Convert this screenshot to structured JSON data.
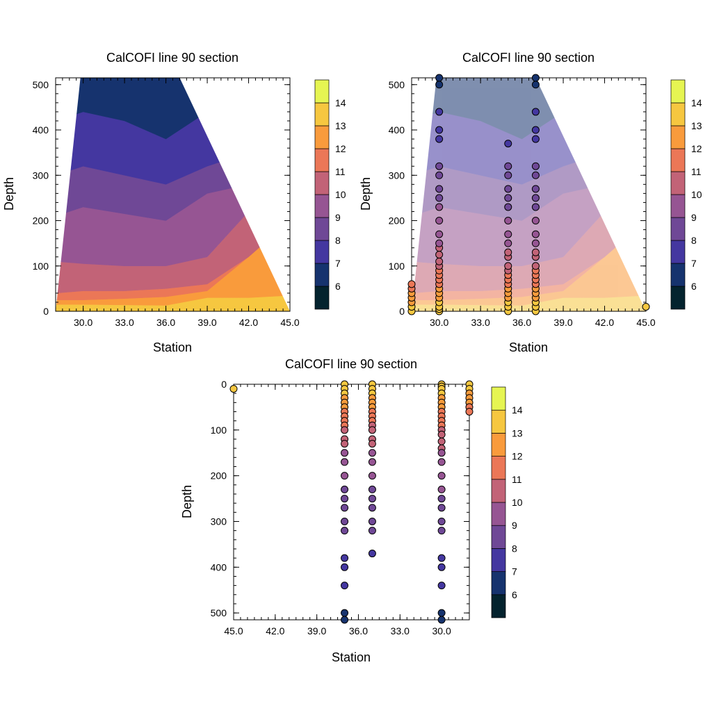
{
  "palette": [
    "#04232e",
    "#16336e",
    "#4437a0",
    "#6f4896",
    "#965593",
    "#c26377",
    "#eb7757",
    "#f99b3c",
    "#f6c740",
    "#e6f552"
  ],
  "colorbar_levels": [
    "6",
    "7",
    "8",
    "9",
    "10",
    "11",
    "12",
    "13",
    "14"
  ],
  "chart_data": [
    {
      "type": "filled-contour",
      "title": "CalCOFI line 90 section",
      "xlabel": "Station",
      "ylabel": "Depth",
      "xlim": [
        28.0,
        45.0
      ],
      "ylim": [
        0,
        515
      ],
      "y_reversed": false,
      "xticks": [
        "30.0",
        "33.0",
        "36.0",
        "39.0",
        "42.0",
        "45.0"
      ],
      "yticks": [
        "0",
        "100",
        "200",
        "300",
        "400",
        "500"
      ],
      "contour_levels": [
        6,
        7,
        8,
        9,
        10,
        11,
        12,
        13,
        14
      ],
      "domain_polygon": [
        [
          28.0,
          0
        ],
        [
          29.8,
          515
        ],
        [
          37.0,
          515
        ],
        [
          45.0,
          0
        ]
      ],
      "band_top_depth_profiles": {
        "stations": [
          28.0,
          30.0,
          33.0,
          36.0,
          39.0,
          42.0,
          45.0
        ],
        "above_13": [
          15,
          15,
          14,
          13,
          30,
          30,
          35
        ],
        "above_12": [
          25,
          25,
          28,
          32,
          45,
          120,
          200
        ],
        "above_11": [
          40,
          45,
          45,
          50,
          60,
          120,
          200
        ],
        "above_10": [
          110,
          105,
          100,
          100,
          120,
          220,
          300
        ],
        "above_9": [
          210,
          230,
          215,
          200,
          260,
          280,
          300
        ],
        "above_8": [
          300,
          320,
          300,
          280,
          320,
          350,
          380
        ],
        "above_7": [
          420,
          440,
          420,
          380,
          440,
          460,
          480
        ],
        "above_6": [
          520,
          520,
          520,
          520,
          520,
          520,
          520
        ]
      },
      "colorbar": "right"
    },
    {
      "type": "filled-contour-with-scatter",
      "title": "CalCOFI line 90 section",
      "xlabel": "Station",
      "ylabel": "Depth",
      "xlim": [
        28.0,
        45.0
      ],
      "ylim": [
        0,
        515
      ],
      "y_reversed": false,
      "xticks": [
        "30.0",
        "33.0",
        "36.0",
        "39.0",
        "42.0",
        "45.0"
      ],
      "yticks": [
        "0",
        "100",
        "200",
        "300",
        "400",
        "500"
      ],
      "contour_fill_opacity": 0.55,
      "domain_polygon": [
        [
          28.0,
          0
        ],
        [
          29.8,
          515
        ],
        [
          37.0,
          515
        ],
        [
          45.0,
          0
        ]
      ],
      "band_top_depth_profiles": {
        "stations": [
          28.0,
          30.0,
          33.0,
          36.0,
          39.0,
          42.0,
          45.0
        ],
        "above_13": [
          15,
          15,
          14,
          13,
          30,
          30,
          35
        ],
        "above_12": [
          25,
          25,
          28,
          32,
          45,
          120,
          200
        ],
        "above_11": [
          40,
          45,
          45,
          50,
          60,
          120,
          200
        ],
        "above_10": [
          110,
          105,
          100,
          100,
          120,
          220,
          300
        ],
        "above_9": [
          210,
          230,
          215,
          200,
          260,
          280,
          300
        ],
        "above_8": [
          300,
          320,
          300,
          280,
          320,
          350,
          380
        ],
        "above_7": [
          420,
          440,
          420,
          380,
          440,
          460,
          480
        ],
        "above_6": [
          520,
          520,
          520,
          520,
          520,
          520,
          520
        ]
      },
      "observations": [
        {
          "station": 28.0,
          "depths": [
            0,
            10,
            20,
            30,
            40,
            50,
            60
          ],
          "temps": [
            13.2,
            13.0,
            12.8,
            12.5,
            12.2,
            11.8,
            11.5
          ]
        },
        {
          "station": 30.0,
          "depths": [
            0,
            5,
            10,
            20,
            30,
            40,
            50,
            60,
            70,
            80,
            90,
            100,
            110,
            125,
            140,
            150,
            170,
            200,
            230,
            250,
            270,
            300,
            320,
            380,
            400,
            440,
            500,
            515
          ],
          "temps": [
            13.6,
            13.5,
            13.4,
            13.2,
            12.9,
            12.5,
            12.2,
            11.9,
            11.6,
            11.3,
            11.1,
            10.9,
            10.6,
            10.2,
            10.0,
            9.8,
            9.6,
            9.3,
            9.0,
            8.8,
            8.6,
            8.3,
            8.1,
            7.8,
            7.6,
            7.3,
            6.9,
            6.8
          ]
        },
        {
          "station": 35.0,
          "depths": [
            0,
            10,
            20,
            30,
            40,
            50,
            60,
            70,
            80,
            90,
            100,
            120,
            130,
            150,
            170,
            200,
            230,
            250,
            270,
            300,
            320,
            370
          ],
          "temps": [
            13.5,
            13.3,
            13.0,
            12.7,
            12.4,
            12.0,
            11.7,
            11.4,
            11.1,
            10.9,
            10.7,
            10.3,
            10.1,
            9.9,
            9.6,
            9.2,
            8.9,
            8.7,
            8.5,
            8.2,
            8.0,
            7.8
          ]
        },
        {
          "station": 37.0,
          "depths": [
            0,
            10,
            20,
            30,
            40,
            50,
            60,
            70,
            80,
            90,
            100,
            120,
            130,
            150,
            170,
            200,
            230,
            250,
            270,
            300,
            320,
            380,
            400,
            440,
            500,
            515
          ],
          "temps": [
            13.6,
            13.4,
            13.2,
            12.9,
            12.5,
            12.2,
            11.8,
            11.5,
            11.2,
            11.0,
            10.8,
            10.4,
            10.2,
            9.9,
            9.6,
            9.2,
            8.9,
            8.7,
            8.5,
            8.2,
            8.0,
            7.6,
            7.4,
            7.2,
            6.9,
            6.8
          ]
        },
        {
          "station": 45.0,
          "depths": [
            10
          ],
          "temps": [
            13.6
          ]
        }
      ],
      "colorbar": "right"
    },
    {
      "type": "scatter",
      "title": "CalCOFI line 90 section",
      "xlabel": "Station",
      "ylabel": "Depth",
      "xlim": [
        45.0,
        28.0
      ],
      "ylim": [
        0,
        515
      ],
      "y_reversed": true,
      "xticks": [
        "45.0",
        "42.0",
        "39.0",
        "36.0",
        "33.0",
        "30.0"
      ],
      "yticks": [
        "0",
        "100",
        "200",
        "300",
        "400",
        "500"
      ],
      "observations": [
        {
          "station": 28.0,
          "depths": [
            0,
            10,
            20,
            30,
            40,
            50,
            60
          ],
          "temps": [
            13.2,
            13.0,
            12.8,
            12.5,
            12.2,
            11.8,
            11.5
          ]
        },
        {
          "station": 30.0,
          "depths": [
            0,
            5,
            10,
            20,
            30,
            40,
            50,
            60,
            70,
            80,
            90,
            100,
            110,
            125,
            140,
            150,
            170,
            200,
            230,
            250,
            270,
            300,
            320,
            380,
            400,
            440,
            500,
            515
          ],
          "temps": [
            13.6,
            13.5,
            13.4,
            13.2,
            12.9,
            12.5,
            12.2,
            11.9,
            11.6,
            11.3,
            11.1,
            10.9,
            10.6,
            10.2,
            10.0,
            9.8,
            9.6,
            9.3,
            9.0,
            8.8,
            8.6,
            8.3,
            8.1,
            7.8,
            7.6,
            7.3,
            6.9,
            6.8
          ]
        },
        {
          "station": 35.0,
          "depths": [
            0,
            10,
            20,
            30,
            40,
            50,
            60,
            70,
            80,
            90,
            100,
            120,
            130,
            150,
            170,
            200,
            230,
            250,
            270,
            300,
            320,
            370
          ],
          "temps": [
            13.5,
            13.3,
            13.0,
            12.7,
            12.4,
            12.0,
            11.7,
            11.4,
            11.1,
            10.9,
            10.7,
            10.3,
            10.1,
            9.9,
            9.6,
            9.2,
            8.9,
            8.7,
            8.5,
            8.2,
            8.0,
            7.8
          ]
        },
        {
          "station": 37.0,
          "depths": [
            0,
            10,
            20,
            30,
            40,
            50,
            60,
            70,
            80,
            90,
            100,
            120,
            130,
            150,
            170,
            200,
            230,
            250,
            270,
            300,
            320,
            380,
            400,
            440,
            500,
            515
          ],
          "temps": [
            13.6,
            13.4,
            13.2,
            12.9,
            12.5,
            12.2,
            11.8,
            11.5,
            11.2,
            11.0,
            10.8,
            10.4,
            10.2,
            9.9,
            9.6,
            9.2,
            8.9,
            8.7,
            8.5,
            8.2,
            8.0,
            7.6,
            7.4,
            7.2,
            6.9,
            6.8
          ]
        },
        {
          "station": 45.0,
          "depths": [
            10
          ],
          "temps": [
            13.6
          ]
        }
      ],
      "colorbar": "right"
    }
  ]
}
